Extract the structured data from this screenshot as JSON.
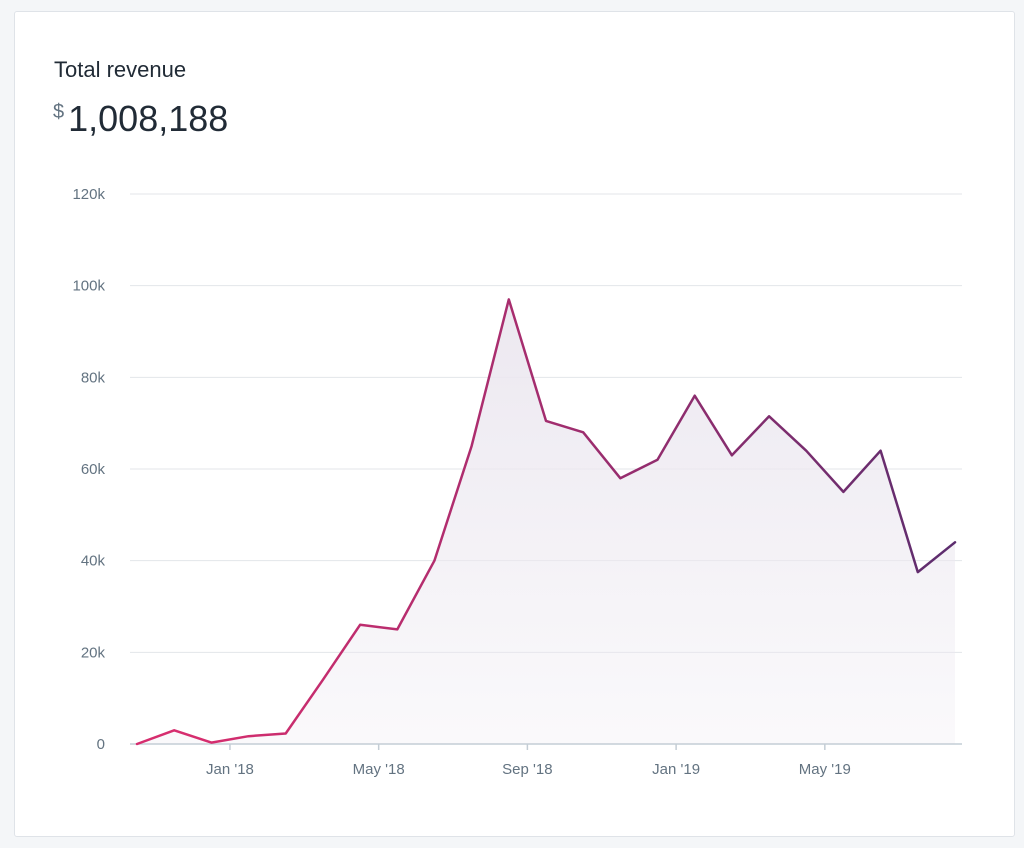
{
  "card": {
    "title": "Total revenue",
    "currency_symbol": "$",
    "total": "1,008,188"
  },
  "colors": {
    "line_start": "#de3618",
    "line_pink": "#d62d6e",
    "line_end": "#5c2d6e",
    "area_fill": "#ece8f0",
    "grid": "#e3e6ea",
    "axis": "#c4cdd5",
    "tick_text": "#637381"
  },
  "chart_data": {
    "type": "area",
    "title": "Total revenue",
    "xlabel": "",
    "ylabel": "",
    "ylim": [
      0,
      120000
    ],
    "y_ticks": [
      {
        "value": 0,
        "label": "0"
      },
      {
        "value": 20000,
        "label": "20k"
      },
      {
        "value": 40000,
        "label": "40k"
      },
      {
        "value": 60000,
        "label": "60k"
      },
      {
        "value": 80000,
        "label": "80k"
      },
      {
        "value": 100000,
        "label": "100k"
      },
      {
        "value": 120000,
        "label": "120k"
      }
    ],
    "x_ticks": [
      {
        "index": 2.5,
        "label": "Jan '18"
      },
      {
        "index": 6.5,
        "label": "May '18"
      },
      {
        "index": 10.5,
        "label": "Sep '18"
      },
      {
        "index": 14.5,
        "label": "Jan '19"
      },
      {
        "index": 18.5,
        "label": "May '19"
      }
    ],
    "grid": true,
    "series": [
      {
        "values": [
          0,
          3000,
          300,
          1700,
          2300,
          14000,
          26000,
          25000,
          40000,
          65000,
          97000,
          70500,
          68000,
          58000,
          62000,
          76000,
          63000,
          71500,
          64000,
          55000,
          64000,
          37500,
          44000
        ]
      }
    ]
  }
}
